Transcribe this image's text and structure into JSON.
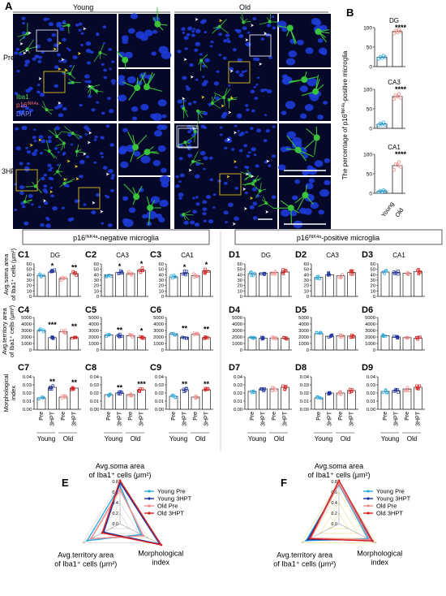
{
  "panelA": {
    "letter": "A",
    "col_young": "Young",
    "col_old": "Old",
    "row_pre": "Pre",
    "row_3hpt": "3HPT",
    "stain_iba1": "Iba1",
    "stain_p16": "p16",
    "stain_p16_sup": "INK4a",
    "stain_dapi": "DAPI",
    "colors": {
      "background": "#06082a",
      "nuclei": "#1d3cd8",
      "microglia": "#39c23a",
      "box": "#e0c020",
      "inset_box": "#dfe3ee",
      "arrow_white": "#ffffff",
      "arrow_yellow": "#f2d21b"
    }
  },
  "panelB": {
    "letter": "B",
    "ylabel_pre": "The percentage of p16",
    "ylabel_sup": "INK4a",
    "ylabel_post": "-positive microglia",
    "xcats": [
      "Young",
      "Old"
    ],
    "yticks": [
      "0",
      "50",
      "100"
    ],
    "charts": [
      {
        "title": "DG",
        "sig": "****",
        "young": [
          20,
          25,
          22,
          28,
          24
        ],
        "old": [
          85,
          92,
          88,
          95,
          90
        ]
      },
      {
        "title": "CA3",
        "sig": "****",
        "young": [
          8,
          12,
          10,
          15,
          9
        ],
        "old": [
          75,
          85,
          82,
          88,
          78
        ]
      },
      {
        "title": "CA1",
        "sig": "****",
        "young": [
          3,
          6,
          4,
          8,
          5
        ],
        "old": [
          60,
          75,
          72,
          80,
          68
        ]
      }
    ]
  },
  "header_neg": {
    "pre": "p16",
    "sup": "INK4a",
    "post": "-negative microglia"
  },
  "header_pos": {
    "pre": "p16",
    "sup": "INK4a",
    "post": "-positive microglia"
  },
  "row_labels": {
    "soma": [
      "Avg.soma area",
      "of Iba1⁺ cells (μm²)"
    ],
    "territory": [
      "Avg.territory area",
      "of Iba1⁺ cells (μm²)"
    ],
    "morph": [
      "Morphological",
      "index"
    ]
  },
  "yticks": {
    "soma": [
      "0",
      "10",
      "20",
      "30",
      "40",
      "50",
      "60"
    ],
    "territory": [
      "0",
      "1000",
      "2000",
      "3000",
      "4000",
      "5000"
    ],
    "morph": [
      "0.00",
      "0.01",
      "0.02",
      "0.03",
      "0.04"
    ]
  },
  "xcats": [
    "Pre",
    "3HPT",
    "Pre",
    "3HPT"
  ],
  "groups": [
    "Young",
    "Old"
  ],
  "colors": {
    "young_pre": "#29a8e0",
    "young_3hpt": "#1a2fa0",
    "old_pre": "#f08a8a",
    "old_3hpt": "#d81e1e"
  },
  "panels": [
    {
      "id": "C1",
      "region": "DG",
      "metric": "soma",
      "values": [
        38,
        45,
        33,
        42
      ],
      "sig": [
        "*",
        "**"
      ]
    },
    {
      "id": "C2",
      "region": "CA3",
      "metric": "soma",
      "values": [
        40,
        44,
        42,
        48
      ],
      "sig": [
        "*",
        "*"
      ]
    },
    {
      "id": "C3",
      "region": "CA1",
      "metric": "soma",
      "values": [
        36,
        43,
        38,
        47
      ],
      "sig": [
        "*",
        "*"
      ]
    },
    {
      "id": "C4",
      "region": "",
      "metric": "territory",
      "values": [
        3000,
        1900,
        2800,
        1900
      ],
      "sig": [
        "***",
        "**"
      ]
    },
    {
      "id": "C5",
      "region": "",
      "metric": "territory",
      "values": [
        2300,
        2250,
        2200,
        1950
      ],
      "sig": [
        "**",
        "*"
      ]
    },
    {
      "id": "C6",
      "region": "",
      "metric": "territory",
      "values": [
        2500,
        1950,
        2400,
        1900
      ],
      "sig": [
        "**",
        "**"
      ]
    },
    {
      "id": "C7",
      "region": "",
      "metric": "morph",
      "values": [
        0.014,
        0.027,
        0.015,
        0.026
      ],
      "sig": [
        "**",
        "**"
      ]
    },
    {
      "id": "C8",
      "region": "",
      "metric": "morph",
      "values": [
        0.018,
        0.02,
        0.018,
        0.024
      ],
      "sig": [
        "**",
        "***"
      ]
    },
    {
      "id": "C9",
      "region": "",
      "metric": "morph",
      "values": [
        0.016,
        0.024,
        0.015,
        0.024
      ],
      "sig": [
        "**",
        "**"
      ]
    },
    {
      "id": "D1",
      "region": "DG",
      "metric": "soma",
      "values": [
        42,
        43,
        44,
        45
      ],
      "sig": [
        "",
        ""
      ]
    },
    {
      "id": "D2",
      "region": "CA3",
      "metric": "soma",
      "values": [
        35,
        40,
        38,
        44
      ],
      "sig": [
        "",
        ""
      ]
    },
    {
      "id": "D3",
      "region": "CA1",
      "metric": "soma",
      "values": [
        45,
        44,
        43,
        46
      ],
      "sig": [
        "",
        ""
      ]
    },
    {
      "id": "D4",
      "region": "",
      "metric": "territory",
      "values": [
        1900,
        1800,
        1850,
        1800
      ],
      "sig": [
        "",
        ""
      ]
    },
    {
      "id": "D5",
      "region": "",
      "metric": "territory",
      "values": [
        2500,
        2100,
        2200,
        2150
      ],
      "sig": [
        "",
        ""
      ]
    },
    {
      "id": "D6",
      "region": "",
      "metric": "territory",
      "values": [
        2200,
        2000,
        1900,
        1800
      ],
      "sig": [
        "",
        ""
      ]
    },
    {
      "id": "D7",
      "region": "",
      "metric": "morph",
      "values": [
        0.022,
        0.025,
        0.025,
        0.027
      ],
      "sig": [
        "",
        ""
      ]
    },
    {
      "id": "D8",
      "region": "",
      "metric": "morph",
      "values": [
        0.014,
        0.02,
        0.02,
        0.023
      ],
      "sig": [
        "",
        ""
      ]
    },
    {
      "id": "D9",
      "region": "",
      "metric": "morph",
      "values": [
        0.022,
        0.023,
        0.025,
        0.027
      ],
      "sig": [
        "",
        ""
      ]
    }
  ],
  "radar": {
    "legend": [
      "Young Pre",
      "Young 3HPT",
      "Old Pre",
      "Old 3HPT"
    ],
    "ticks": [
      "0.0",
      "0.2",
      "0.4",
      "0.6",
      "0.8"
    ],
    "axis_top": [
      "Avg.soma area",
      "of Iba1⁺ cells (μm²)"
    ],
    "axis_left": [
      "Avg.territory area",
      "of Iba1⁺ cells (μm²)"
    ],
    "axis_right": [
      "Morphological",
      "index"
    ],
    "E": {
      "letter": "E",
      "ring_color": "#cfcfcf",
      "series": [
        [
          0.72,
          0.7,
          0.45
        ],
        [
          0.78,
          0.35,
          0.85
        ],
        [
          0.65,
          0.62,
          0.5
        ],
        [
          0.82,
          0.38,
          0.88
        ]
      ]
    },
    "F": {
      "letter": "F",
      "ring_color": "#eadc8a",
      "series": [
        [
          0.74,
          0.7,
          0.62
        ],
        [
          0.76,
          0.66,
          0.68
        ],
        [
          0.76,
          0.6,
          0.66
        ],
        [
          0.82,
          0.62,
          0.72
        ]
      ]
    }
  }
}
